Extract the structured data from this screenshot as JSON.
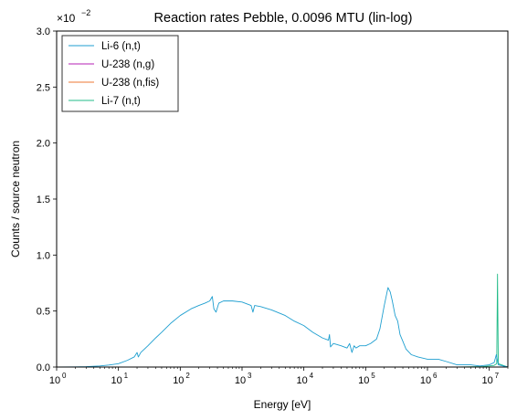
{
  "chart_data": {
    "type": "line",
    "title": "Reaction rates Pebble, 0.0096 MTU (lin-log)",
    "xlabel": "Energy [eV]",
    "ylabel": "Counts / source neutron",
    "x_scale": "log",
    "y_scale": "linear",
    "xlim": [
      1,
      20000000
    ],
    "ylim": [
      0,
      0.03
    ],
    "y_multiplier_label": {
      "base": "×10",
      "exponent": "−2"
    },
    "x_ticks": [
      {
        "value": 1,
        "base": "10",
        "exp": "0"
      },
      {
        "value": 10,
        "base": "10",
        "exp": "1"
      },
      {
        "value": 100,
        "base": "10",
        "exp": "2"
      },
      {
        "value": 1000,
        "base": "10",
        "exp": "3"
      },
      {
        "value": 10000,
        "base": "10",
        "exp": "4"
      },
      {
        "value": 100000,
        "base": "10",
        "exp": "5"
      },
      {
        "value": 1000000,
        "base": "10",
        "exp": "6"
      },
      {
        "value": 10000000,
        "base": "10",
        "exp": "7"
      }
    ],
    "y_ticks": [
      {
        "value": 0.0,
        "label": "0.0"
      },
      {
        "value": 0.005,
        "label": "0.5"
      },
      {
        "value": 0.01,
        "label": "1.0"
      },
      {
        "value": 0.015,
        "label": "1.5"
      },
      {
        "value": 0.02,
        "label": "2.0"
      },
      {
        "value": 0.025,
        "label": "2.5"
      },
      {
        "value": 0.03,
        "label": "3.0"
      }
    ],
    "grid": false,
    "legend_position": "top-left",
    "series": [
      {
        "name": "Li-6 (n,t)",
        "color": "#1f9fd0",
        "points": [
          [
            1,
            0.0
          ],
          [
            2,
            1e-05
          ],
          [
            3,
            3e-05
          ],
          [
            5,
            0.0001
          ],
          [
            7,
            0.00018
          ],
          [
            10,
            0.0003
          ],
          [
            14,
            0.0006
          ],
          [
            18,
            0.0009
          ],
          [
            19,
            0.0011
          ],
          [
            20,
            0.0013
          ],
          [
            21,
            0.0009
          ],
          [
            23,
            0.0013
          ],
          [
            30,
            0.0019
          ],
          [
            40,
            0.0026
          ],
          [
            50,
            0.0031
          ],
          [
            70,
            0.0039
          ],
          [
            100,
            0.0046
          ],
          [
            150,
            0.0052
          ],
          [
            200,
            0.0055
          ],
          [
            250,
            0.0057
          ],
          [
            300,
            0.0059
          ],
          [
            330,
            0.0063
          ],
          [
            350,
            0.0052
          ],
          [
            380,
            0.0049
          ],
          [
            420,
            0.0057
          ],
          [
            500,
            0.0059
          ],
          [
            700,
            0.0059
          ],
          [
            1000,
            0.0058
          ],
          [
            1400,
            0.0055
          ],
          [
            1500,
            0.0049
          ],
          [
            1600,
            0.0055
          ],
          [
            2000,
            0.0054
          ],
          [
            3000,
            0.0051
          ],
          [
            5000,
            0.0046
          ],
          [
            7000,
            0.0041
          ],
          [
            10000,
            0.0037
          ],
          [
            14000,
            0.0031
          ],
          [
            20000,
            0.0026
          ],
          [
            25000,
            0.0024
          ],
          [
            26000,
            0.0029
          ],
          [
            27000,
            0.0018
          ],
          [
            30000,
            0.0021
          ],
          [
            40000,
            0.0019
          ],
          [
            50000,
            0.0017
          ],
          [
            55000,
            0.0021
          ],
          [
            60000,
            0.0013
          ],
          [
            65000,
            0.0019
          ],
          [
            70000,
            0.0017
          ],
          [
            80000,
            0.0019
          ],
          [
            100000,
            0.0019
          ],
          [
            120000,
            0.0021
          ],
          [
            150000,
            0.0025
          ],
          [
            170000,
            0.0034
          ],
          [
            200000,
            0.0055
          ],
          [
            230000,
            0.0071
          ],
          [
            250000,
            0.0067
          ],
          [
            270000,
            0.0059
          ],
          [
            300000,
            0.0046
          ],
          [
            330000,
            0.0041
          ],
          [
            360000,
            0.0029
          ],
          [
            400000,
            0.0023
          ],
          [
            450000,
            0.0016
          ],
          [
            550000,
            0.0011
          ],
          [
            700000,
            0.0009
          ],
          [
            1000000,
            0.0007
          ],
          [
            1500000,
            0.0007
          ],
          [
            2000000,
            0.0005
          ],
          [
            3000000,
            0.0002
          ],
          [
            5000000,
            0.0002
          ],
          [
            7000000,
            0.0001
          ],
          [
            10000000,
            0.0002
          ],
          [
            12000000,
            0.0004
          ],
          [
            13000000,
            0.0011
          ],
          [
            14000000,
            0.0002
          ],
          [
            20000000,
            0.0
          ]
        ]
      },
      {
        "name": "U-238 (n,g)",
        "color": "#b41fb4",
        "points": [
          [
            1,
            0.0
          ],
          [
            20000000,
            0.0
          ]
        ]
      },
      {
        "name": "U-238 (n,fis)",
        "color": "#ee7733",
        "points": [
          [
            1,
            0.0
          ],
          [
            20000000,
            0.0
          ]
        ]
      },
      {
        "name": "Li-7 (n,t)",
        "color": "#22bb88",
        "points": [
          [
            1,
            0.0
          ],
          [
            3000000,
            0.0
          ],
          [
            5000000,
            2e-05
          ],
          [
            8000000,
            5e-05
          ],
          [
            10000000,
            0.0001
          ],
          [
            12000000,
            0.00015
          ],
          [
            13200000,
            0.0003
          ],
          [
            13600000,
            0.0083
          ],
          [
            14000000,
            0.0003
          ],
          [
            20000000,
            0.0
          ]
        ]
      }
    ]
  }
}
